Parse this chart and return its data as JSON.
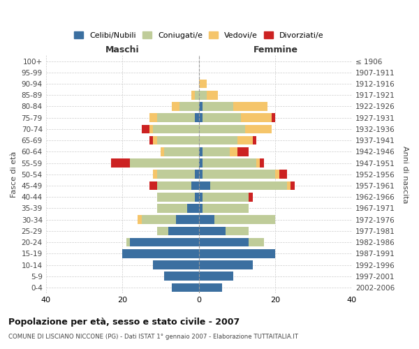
{
  "age_groups": [
    "0-4",
    "5-9",
    "10-14",
    "15-19",
    "20-24",
    "25-29",
    "30-34",
    "35-39",
    "40-44",
    "45-49",
    "50-54",
    "55-59",
    "60-64",
    "65-69",
    "70-74",
    "75-79",
    "80-84",
    "85-89",
    "90-94",
    "95-99",
    "100+"
  ],
  "birth_years": [
    "2002-2006",
    "1997-2001",
    "1992-1996",
    "1987-1991",
    "1982-1986",
    "1977-1981",
    "1972-1976",
    "1967-1971",
    "1962-1966",
    "1957-1961",
    "1952-1956",
    "1947-1951",
    "1942-1946",
    "1937-1941",
    "1932-1936",
    "1927-1931",
    "1922-1926",
    "1917-1921",
    "1912-1916",
    "1907-1911",
    "≤ 1906"
  ],
  "maschi": {
    "celibi": [
      7,
      9,
      12,
      20,
      18,
      8,
      6,
      3,
      1,
      2,
      1,
      0,
      0,
      0,
      0,
      1,
      0,
      0,
      0,
      0,
      0
    ],
    "coniugati": [
      0,
      0,
      0,
      0,
      1,
      3,
      9,
      8,
      10,
      9,
      10,
      18,
      9,
      11,
      12,
      10,
      5,
      1,
      0,
      0,
      0
    ],
    "vedovi": [
      0,
      0,
      0,
      0,
      0,
      0,
      1,
      0,
      0,
      0,
      1,
      0,
      1,
      1,
      1,
      2,
      2,
      1,
      0,
      0,
      0
    ],
    "divorziati": [
      0,
      0,
      0,
      0,
      0,
      0,
      0,
      0,
      0,
      2,
      0,
      5,
      0,
      1,
      2,
      0,
      0,
      0,
      0,
      0,
      0
    ]
  },
  "femmine": {
    "nubili": [
      6,
      9,
      14,
      20,
      13,
      7,
      4,
      1,
      1,
      3,
      1,
      1,
      1,
      0,
      0,
      1,
      1,
      0,
      0,
      0,
      0
    ],
    "coniugate": [
      0,
      0,
      0,
      0,
      4,
      6,
      16,
      12,
      12,
      20,
      19,
      14,
      7,
      10,
      12,
      10,
      8,
      2,
      0,
      0,
      0
    ],
    "vedove": [
      0,
      0,
      0,
      0,
      0,
      0,
      0,
      0,
      0,
      1,
      1,
      1,
      2,
      4,
      7,
      8,
      9,
      3,
      2,
      0,
      0
    ],
    "divorziate": [
      0,
      0,
      0,
      0,
      0,
      0,
      0,
      0,
      1,
      1,
      2,
      1,
      3,
      1,
      0,
      1,
      0,
      0,
      0,
      0,
      0
    ]
  },
  "colors": {
    "celibi": "#3B6FA0",
    "coniugati": "#BFCC99",
    "vedovi": "#F5C56A",
    "divorziati": "#CC2222"
  },
  "legend_labels": [
    "Celibi/Nubili",
    "Coniugati/e",
    "Vedovi/e",
    "Divorziati/e"
  ],
  "title": "Popolazione per età, sesso e stato civile - 2007",
  "subtitle": "COMUNE DI LISCIANO NICCONE (PG) - Dati ISTAT 1° gennaio 2007 - Elaborazione TUTTAITALIA.IT",
  "xlabel_left": "Maschi",
  "xlabel_right": "Femmine",
  "ylabel_left": "Fasce di età",
  "ylabel_right": "Anni di nascita",
  "xlim": 40,
  "bg_color": "#FFFFFF",
  "grid_color": "#CCCCCC"
}
